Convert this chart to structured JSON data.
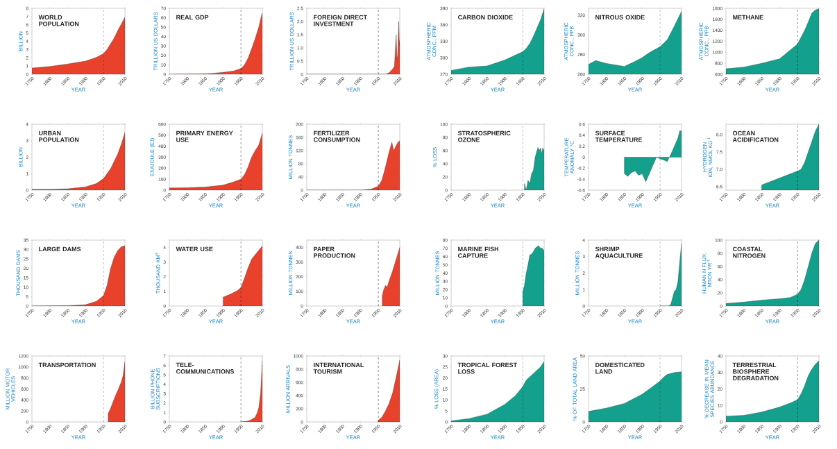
{
  "chart_data": [
    {
      "type": "area",
      "title": "WORLD POPULATION",
      "xlabel": "YEAR",
      "ylabel": "BILLION",
      "color": "#e8412c",
      "x": [
        1750,
        1800,
        1850,
        1900,
        1930,
        1950,
        1960,
        1970,
        1980,
        1990,
        2000,
        2010
      ],
      "values": [
        0.75,
        0.95,
        1.25,
        1.6,
        2.05,
        2.5,
        3.0,
        3.7,
        4.4,
        5.3,
        6.1,
        6.9
      ],
      "xlim": [
        1750,
        2010
      ],
      "xticks": [
        1750,
        1800,
        1850,
        1900,
        1950,
        2010
      ],
      "ylim": [
        0,
        8
      ],
      "yticks": [
        0,
        1,
        2,
        3,
        4,
        5,
        6,
        7,
        8
      ],
      "ref_lines": [
        {
          "axis": "x",
          "value": 1950,
          "color": "#000000",
          "line_style": "dashed"
        }
      ]
    },
    {
      "type": "area",
      "title": "REAL GDP",
      "xlabel": "YEAR",
      "ylabel": "TRILLION US DOLLARS",
      "color": "#e8412c",
      "x": [
        1750,
        1850,
        1870,
        1900,
        1930,
        1950,
        1960,
        1970,
        1980,
        1990,
        2000,
        2008,
        2010
      ],
      "values": [
        0,
        0.5,
        1,
        2,
        3.5,
        6,
        10,
        17,
        27,
        38,
        50,
        63,
        65
      ],
      "xlim": [
        1750,
        2010
      ],
      "xticks": [
        1750,
        1800,
        1850,
        1900,
        1950,
        2010
      ],
      "ylim": [
        0,
        70
      ],
      "yticks": [
        0,
        10,
        20,
        30,
        40,
        50,
        60,
        70
      ],
      "ref_lines": [
        {
          "axis": "x",
          "value": 1950,
          "color": "#000000",
          "line_style": "dashed"
        }
      ]
    },
    {
      "type": "area",
      "title": "FOREIGN DIRECT INVESTMENT",
      "xlabel": "YEAR",
      "ylabel": "TRILLION US DOLLARS",
      "color": "#e8412c",
      "x": [
        1750,
        1970,
        1980,
        1990,
        1995,
        2000,
        2002,
        2004,
        2007,
        2009,
        2010
      ],
      "values": [
        0,
        0,
        0.05,
        0.2,
        0.3,
        1.5,
        0.6,
        0.7,
        2.0,
        1.1,
        1.3
      ],
      "xlim": [
        1750,
        2010
      ],
      "xticks": [
        1750,
        1800,
        1850,
        1900,
        1950,
        2010
      ],
      "ylim": [
        0,
        2.5
      ],
      "yticks": [
        0,
        0.5,
        {
          "value": 1,
          "label": "1.0"
        },
        1.5,
        {
          "value": 2,
          "label": "2.0"
        },
        2.5
      ],
      "ref_lines": [
        {
          "axis": "x",
          "value": 1950,
          "color": "#000000",
          "line_style": "dashed"
        }
      ]
    },
    {
      "type": "area",
      "title": "CARBON DIOXIDE",
      "xlabel": "YEAR",
      "ylabel": "ATMOSPHERIC CONC., PPM",
      "color": "#13a08c",
      "x": [
        1750,
        1800,
        1850,
        1900,
        1950,
        1960,
        1970,
        1980,
        1990,
        2000,
        2010
      ],
      "values": [
        277,
        283,
        285,
        296,
        311,
        317,
        326,
        339,
        354,
        369,
        389
      ],
      "xlim": [
        1750,
        2010
      ],
      "xticks": [
        1750,
        1800,
        1850,
        1900,
        1950,
        2010
      ],
      "ylim": [
        270,
        390
      ],
      "yticks": [
        270,
        300,
        330,
        360,
        390
      ],
      "ref_lines": [
        {
          "axis": "x",
          "value": 1950,
          "color": "#000000",
          "line_style": "dashed"
        }
      ]
    },
    {
      "type": "area",
      "title": "NITROUS OXIDE",
      "xlabel": "YEAR",
      "ylabel": "ATMOSPHERIC CONC., PPB",
      "color": "#13a08c",
      "x": [
        1750,
        1770,
        1800,
        1850,
        1880,
        1900,
        1920,
        1950,
        1970,
        1990,
        2010
      ],
      "values": [
        270,
        274,
        271,
        268,
        273,
        277,
        282,
        288,
        295,
        309,
        324
      ],
      "xlim": [
        1750,
        2010
      ],
      "xticks": [
        1750,
        1800,
        1850,
        1900,
        1950,
        2010
      ],
      "ylim": [
        260,
        327
      ],
      "yticks": [
        260,
        280,
        300,
        320
      ],
      "ref_lines": [
        {
          "axis": "x",
          "value": 1950,
          "color": "#000000",
          "line_style": "dashed"
        }
      ]
    },
    {
      "type": "area",
      "title": "METHANE",
      "xlabel": "YEAR",
      "ylabel": "ATMOSPHERIC CONC., PPB",
      "color": "#13a08c",
      "x": [
        1750,
        1800,
        1850,
        1900,
        1950,
        1970,
        1980,
        1990,
        2000,
        2010
      ],
      "values": [
        700,
        730,
        800,
        880,
        1150,
        1400,
        1550,
        1710,
        1770,
        1790
      ],
      "xlim": [
        1750,
        2010
      ],
      "xticks": [
        1750,
        1800,
        1850,
        1900,
        1950,
        2010
      ],
      "ylim": [
        600,
        1800
      ],
      "yticks": [
        600,
        800,
        1000,
        1200,
        1400,
        1600,
        1800
      ],
      "ref_lines": [
        {
          "axis": "x",
          "value": 1950,
          "color": "#000000",
          "line_style": "dashed"
        }
      ]
    },
    {
      "type": "area",
      "title": "URBAN POPULATION",
      "xlabel": "YEAR",
      "ylabel": "BILLION",
      "color": "#e8412c",
      "x": [
        1750,
        1800,
        1850,
        1900,
        1930,
        1950,
        1970,
        1990,
        2000,
        2010
      ],
      "values": [
        0.05,
        0.05,
        0.08,
        0.2,
        0.4,
        0.7,
        1.3,
        2.2,
        2.8,
        3.5
      ],
      "xlim": [
        1750,
        2010
      ],
      "xticks": [
        1750,
        1800,
        1850,
        1900,
        1950,
        2010
      ],
      "ylim": [
        0,
        4
      ],
      "yticks": [
        0,
        1,
        2,
        3,
        4
      ],
      "ref_lines": [
        {
          "axis": "x",
          "value": 1950,
          "color": "#000000",
          "line_style": "dashed"
        }
      ]
    },
    {
      "type": "area",
      "title": "PRIMARY ENERGY USE",
      "xlabel": "YEAR",
      "ylabel": "EXAJOULE (EJ)",
      "color": "#e8412c",
      "x": [
        1750,
        1800,
        1850,
        1900,
        1930,
        1950,
        1960,
        1970,
        1980,
        1990,
        2000,
        2010
      ],
      "values": [
        20,
        22,
        28,
        45,
        75,
        100,
        140,
        210,
        300,
        360,
        410,
        520
      ],
      "xlim": [
        1750,
        2010
      ],
      "xticks": [
        1750,
        1800,
        1850,
        1900,
        1950,
        2010
      ],
      "ylim": [
        0,
        600
      ],
      "yticks": [
        0,
        100,
        200,
        300,
        400,
        500,
        600
      ],
      "ref_lines": [
        {
          "axis": "x",
          "value": 1950,
          "color": "#000000",
          "line_style": "dashed"
        }
      ]
    },
    {
      "type": "area",
      "title": "FERTILIZER CONSUMPTION",
      "xlabel": "YEAR",
      "ylabel": "MILLION TONNES",
      "color": "#e8412c",
      "x": [
        1750,
        1900,
        1930,
        1950,
        1960,
        1970,
        1980,
        1988,
        1993,
        2000,
        2005,
        2010
      ],
      "values": [
        0,
        0,
        3,
        12,
        30,
        70,
        115,
        145,
        120,
        135,
        145,
        150
      ],
      "xlim": [
        1750,
        2010
      ],
      "xticks": [
        1750,
        1800,
        1850,
        1900,
        1950,
        2010
      ],
      "ylim": [
        0,
        200
      ],
      "yticks": [
        0,
        40,
        80,
        120,
        160,
        200
      ],
      "ref_lines": [
        {
          "axis": "x",
          "value": 1950,
          "color": "#000000",
          "line_style": "dashed"
        }
      ]
    },
    {
      "type": "area",
      "title": "STRATOSPHERIC OZONE",
      "xlabel": "YEAR",
      "ylabel": "% LOSS",
      "color": "#13a08c",
      "x": [
        1955,
        1960,
        1965,
        1970,
        1975,
        1980,
        1985,
        1990,
        1993,
        1996,
        2000,
        2003,
        2006,
        2010
      ],
      "values": [
        10,
        0,
        15,
        10,
        25,
        30,
        50,
        60,
        65,
        60,
        64,
        55,
        64,
        60
      ],
      "xlim": [
        1750,
        2010
      ],
      "xticks": [
        1750,
        1800,
        1850,
        1900,
        1950,
        2010
      ],
      "ylim": [
        0,
        100
      ],
      "yticks": [
        0,
        20,
        40,
        60,
        80,
        100
      ],
      "ref_lines": [
        {
          "axis": "x",
          "value": 1950,
          "color": "#000000",
          "line_style": "dashed"
        }
      ]
    },
    {
      "type": "area",
      "title": "SURFACE TEMPERATURE",
      "xlabel": "YEAR",
      "ylabel": "TEMPERATURE ANOMALY °C",
      "color": "#13a08c",
      "x": [
        1850,
        1860,
        1870,
        1880,
        1890,
        1900,
        1910,
        1920,
        1930,
        1940,
        1950,
        1960,
        1970,
        1980,
        1990,
        2000,
        2005,
        2010
      ],
      "values": [
        -0.3,
        -0.35,
        -0.28,
        -0.25,
        -0.33,
        -0.3,
        -0.45,
        -0.3,
        -0.15,
        0.0,
        -0.03,
        -0.05,
        -0.08,
        0.05,
        0.2,
        0.35,
        0.48,
        0.48
      ],
      "xlim": [
        1750,
        2010
      ],
      "xticks": [
        1750,
        1800,
        1850,
        1900,
        1950,
        2010
      ],
      "ylim": [
        -0.6,
        0.6
      ],
      "yticks": [
        -0.6,
        -0.4,
        -0.2,
        0,
        0.2,
        0.4,
        0.6
      ],
      "ref_lines": [
        {
          "axis": "x",
          "value": 1950,
          "color": "#000000",
          "line_style": "dashed"
        }
      ]
    },
    {
      "type": "area",
      "title": "OCEAN ACIDIFICATION",
      "xlabel": "YEAR",
      "ylabel": "HYDROGEN ION, NMOL KG$^{-1}$",
      "color": "#13a08c",
      "x": [
        1850,
        1900,
        1950,
        1960,
        1970,
        1980,
        1990,
        2000,
        2010
      ],
      "values": [
        6.55,
        6.75,
        6.95,
        7.0,
        7.2,
        7.5,
        7.8,
        8.1,
        8.3
      ],
      "xlim": [
        1750,
        2010
      ],
      "xticks": [
        1750,
        1800,
        1850,
        1900,
        1950,
        2010
      ],
      "ylim": [
        6.4,
        8.3
      ],
      "yticks": [
        6.5,
        {
          "value": 7,
          "label": "7.0"
        },
        7.5,
        {
          "value": 8,
          "label": "8.0"
        }
      ],
      "ref_lines": [
        {
          "axis": "x",
          "value": 1950,
          "color": "#000000",
          "line_style": "dashed"
        }
      ]
    },
    {
      "type": "area",
      "title": "LARGE DAMS",
      "xlabel": "YEAR",
      "ylabel": "THOUSAND DAMS",
      "color": "#e8412c",
      "x": [
        1750,
        1850,
        1900,
        1930,
        1950,
        1960,
        1970,
        1980,
        1990,
        2000,
        2010
      ],
      "values": [
        0,
        0.2,
        0.7,
        2.5,
        5.5,
        11,
        20,
        26,
        29.5,
        31.5,
        32
      ],
      "xlim": [
        1750,
        2010
      ],
      "xticks": [
        1750,
        1800,
        1850,
        1900,
        1950,
        2010
      ],
      "ylim": [
        0,
        35
      ],
      "yticks": [
        0,
        5,
        10,
        15,
        20,
        25,
        30,
        35
      ],
      "ref_lines": [
        {
          "axis": "x",
          "value": 1950,
          "color": "#000000",
          "line_style": "dashed"
        }
      ]
    },
    {
      "type": "area",
      "title": "WATER USE",
      "xlabel": "YEAR",
      "ylabel": "THOUSAND KM$^{3}$",
      "color": "#e8412c",
      "x": [
        1900,
        1920,
        1940,
        1950,
        1960,
        1970,
        1980,
        1990,
        2000,
        2010
      ],
      "values": [
        0.6,
        0.8,
        1.05,
        1.25,
        1.9,
        2.6,
        3.2,
        3.5,
        3.8,
        4.1
      ],
      "xlim": [
        1750,
        2010
      ],
      "xticks": [
        1750,
        1800,
        1850,
        1900,
        1950,
        2010
      ],
      "ylim": [
        0,
        4.5
      ],
      "yticks": [
        0,
        1,
        2,
        3,
        4
      ],
      "ref_lines": [
        {
          "axis": "x",
          "value": 1950,
          "color": "#000000",
          "line_style": "dashed"
        }
      ]
    },
    {
      "type": "area",
      "title": "PAPER PRODUCTION",
      "xlabel": "YEAR",
      "ylabel": "MILLION TONNES",
      "color": "#e8412c",
      "x": [
        1961,
        1965,
        1970,
        1975,
        1980,
        1990,
        2000,
        2010
      ],
      "values": [
        70,
        110,
        140,
        130,
        170,
        240,
        320,
        400
      ],
      "xlim": [
        1750,
        2010
      ],
      "xticks": [
        1750,
        1800,
        1850,
        1900,
        1950,
        2010
      ],
      "ylim": [
        0,
        450
      ],
      "yticks": [
        0,
        100,
        200,
        300,
        400
      ],
      "ref_lines": [
        {
          "axis": "x",
          "value": 1950,
          "color": "#000000",
          "line_style": "dashed"
        }
      ]
    },
    {
      "type": "area",
      "title": "MARINE FISH CAPTURE",
      "xlabel": "YEAR",
      "ylabel": "MILLION TONNES",
      "color": "#13a08c",
      "x": [
        1950,
        1955,
        1960,
        1965,
        1970,
        1975,
        1980,
        1985,
        1990,
        1995,
        2000,
        2005,
        2010
      ],
      "values": [
        17,
        25,
        40,
        50,
        62,
        63,
        66,
        70,
        72,
        73,
        70,
        70,
        67
      ],
      "xlim": [
        1750,
        2010
      ],
      "xticks": [
        1750,
        1800,
        1850,
        1900,
        1950,
        2010
      ],
      "ylim": [
        0,
        80
      ],
      "yticks": [
        0,
        10,
        20,
        30,
        40,
        50,
        60,
        70,
        80
      ],
      "ref_lines": [
        {
          "axis": "x",
          "value": 1950,
          "color": "#000000",
          "line_style": "dashed"
        }
      ]
    },
    {
      "type": "area",
      "title": "SHRIMP AQUACULTURE",
      "xlabel": "YEAR",
      "ylabel": "MILLION TONNES",
      "color": "#13a08c",
      "x": [
        1950,
        1975,
        1980,
        1985,
        1990,
        1995,
        2000,
        2005,
        2010
      ],
      "values": [
        0,
        0,
        0.1,
        0.5,
        0.9,
        1.0,
        1.5,
        2.7,
        3.8
      ],
      "xlim": [
        1750,
        2010
      ],
      "xticks": [
        1750,
        1800,
        1850,
        1900,
        1950,
        2010
      ],
      "ylim": [
        0,
        4
      ],
      "yticks": [
        0,
        1,
        2,
        3,
        4
      ],
      "ref_lines": [
        {
          "axis": "x",
          "value": 1950,
          "color": "#000000",
          "line_style": "dashed"
        }
      ]
    },
    {
      "type": "area",
      "title": "COASTAL NITROGEN",
      "xlabel": "YEAR",
      "ylabel": "HUMAN N FLUX, MTON YR$^{-1}$",
      "color": "#13a08c",
      "x": [
        1750,
        1800,
        1850,
        1900,
        1930,
        1950,
        1960,
        1970,
        1980,
        1990,
        2000,
        2010
      ],
      "values": [
        4,
        6,
        9,
        11,
        13,
        18,
        25,
        40,
        60,
        80,
        95,
        100
      ],
      "xlim": [
        1750,
        2010
      ],
      "xticks": [
        1750,
        1800,
        1850,
        1900,
        1950,
        2010
      ],
      "ylim": [
        0,
        100
      ],
      "yticks": [
        0,
        20,
        40,
        60,
        80,
        100
      ],
      "ref_lines": [
        {
          "axis": "x",
          "value": 1950,
          "color": "#000000",
          "line_style": "dashed"
        }
      ]
    },
    {
      "type": "area",
      "title": "TRANSPORTATION",
      "xlabel": "YEAR",
      "ylabel": "MILLION MOTOR VEHICLES",
      "color": "#e8412c",
      "x": [
        1963,
        1970,
        1980,
        1985,
        1990,
        1995,
        2000,
        2005,
        2010
      ],
      "values": [
        150,
        250,
        420,
        500,
        570,
        650,
        730,
        850,
        1100
      ],
      "xlim": [
        1750,
        2010
      ],
      "xticks": [
        1750,
        1800,
        1850,
        1900,
        1950,
        2010
      ],
      "ylim": [
        0,
        1200
      ],
      "yticks": [
        0,
        200,
        400,
        600,
        800,
        1000,
        1200
      ],
      "ref_lines": [
        {
          "axis": "x",
          "value": 1950,
          "color": "#000000",
          "line_style": "dashed"
        }
      ]
    },
    {
      "type": "area",
      "title": "TELE-COMMUNICATIONS",
      "xlabel": "YEAR",
      "ylabel": "BILLION PHONE SUBSCRIPTIONS",
      "color": "#e8412c",
      "x": [
        1950,
        1970,
        1980,
        1990,
        1995,
        2000,
        2005,
        2010
      ],
      "values": [
        0,
        0.1,
        0.25,
        0.5,
        0.9,
        1.5,
        3.0,
        6.5
      ],
      "xlim": [
        1750,
        2010
      ],
      "xticks": [
        1750,
        1800,
        1850,
        1900,
        1950,
        2010
      ],
      "ylim": [
        0,
        7
      ],
      "yticks": [
        0,
        1,
        2,
        3,
        4,
        5,
        6,
        7
      ],
      "ref_lines": [
        {
          "axis": "x",
          "value": 1950,
          "color": "#000000",
          "line_style": "dashed"
        }
      ]
    },
    {
      "type": "area",
      "title": "INTERNATIONAL TOURISM",
      "xlabel": "YEAR",
      "ylabel": "MILLION ARRIVALS",
      "color": "#e8412c",
      "x": [
        1950,
        1960,
        1970,
        1980,
        1990,
        2000,
        2010
      ],
      "values": [
        25,
        70,
        165,
        280,
        440,
        680,
        940
      ],
      "xlim": [
        1750,
        2010
      ],
      "xticks": [
        1750,
        1800,
        1850,
        1900,
        1950,
        2010
      ],
      "ylim": [
        0,
        1000
      ],
      "yticks": [
        0,
        200,
        400,
        600,
        800,
        1000
      ],
      "ref_lines": [
        {
          "axis": "x",
          "value": 1950,
          "color": "#000000",
          "line_style": "dashed"
        }
      ]
    },
    {
      "type": "area",
      "title": "TROPICAL FOREST LOSS",
      "xlabel": "YEAR",
      "ylabel": "% LOSS (AREA)",
      "color": "#13a08c",
      "x": [
        1750,
        1800,
        1850,
        1900,
        1930,
        1950,
        1960,
        1970,
        1980,
        1990,
        2000,
        2010
      ],
      "values": [
        0.5,
        1.5,
        3.5,
        8,
        12,
        16,
        19,
        20.5,
        22,
        23.5,
        25,
        27.5
      ],
      "xlim": [
        1750,
        2010
      ],
      "xticks": [
        1750,
        1800,
        1850,
        1900,
        1950,
        2010
      ],
      "ylim": [
        0,
        30
      ],
      "yticks": [
        0,
        5,
        10,
        15,
        20,
        25,
        30
      ],
      "ref_lines": [
        {
          "axis": "x",
          "value": 1950,
          "color": "#000000",
          "line_style": "dashed"
        }
      ]
    },
    {
      "type": "area",
      "title": "DOMESTICATED LAND",
      "xlabel": "YEAR",
      "ylabel": "% OF TOTAL LAND AREA",
      "color": "#13a08c",
      "x": [
        1750,
        1800,
        1850,
        1900,
        1930,
        1950,
        1960,
        1970,
        1990,
        2010
      ],
      "values": [
        8,
        10.5,
        14,
        21,
        27,
        31,
        34,
        36,
        37.5,
        38
      ],
      "xlim": [
        1750,
        2010
      ],
      "xticks": [
        1750,
        1800,
        1850,
        1900,
        1950,
        2010
      ],
      "ylim": [
        0,
        50
      ],
      "yticks": [
        0,
        25,
        50
      ],
      "ref_lines": [
        {
          "axis": "x",
          "value": 1950,
          "color": "#000000",
          "line_style": "dashed"
        }
      ]
    },
    {
      "type": "area",
      "title": "TERRESTRIAL BIOSPHERE DEGRADATION",
      "xlabel": "YEAR",
      "ylabel": "% DECREASE IN MEAN SPECIES ABUNDANCE",
      "color": "#13a08c",
      "x": [
        1750,
        1800,
        1850,
        1900,
        1930,
        1950,
        1960,
        1970,
        1980,
        1990,
        2000,
        2010
      ],
      "values": [
        3.5,
        4,
        6,
        9,
        11.5,
        13.5,
        17,
        22,
        28,
        32,
        35,
        37
      ],
      "xlim": [
        1750,
        2010
      ],
      "xticks": [
        1750,
        1800,
        1850,
        1900,
        1950,
        2010
      ],
      "ylim": [
        0,
        40
      ],
      "yticks": [
        0,
        10,
        20,
        30,
        40
      ],
      "ref_lines": [
        {
          "axis": "x",
          "value": 1950,
          "color": "#000000",
          "line_style": "dashed"
        }
      ]
    }
  ]
}
